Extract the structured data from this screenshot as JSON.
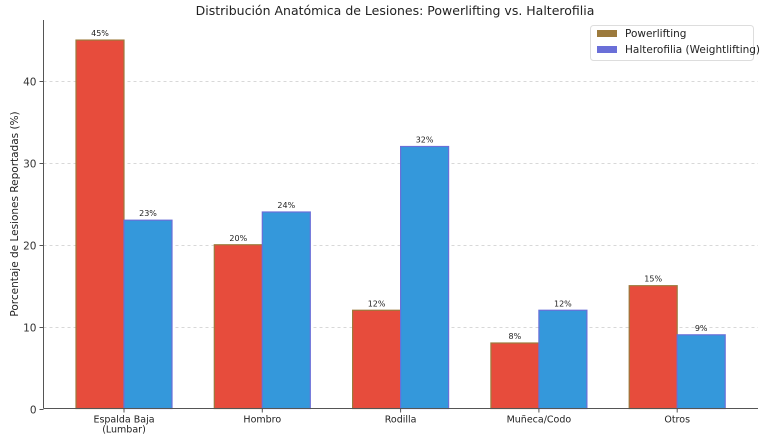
{
  "chart_data": {
    "type": "bar",
    "title": "Distribución Anatómica de Lesiones: Powerlifting vs. Halterofilia",
    "xlabel": "",
    "ylabel": "Porcentaje de Lesiones Reportadas (%)",
    "categories": [
      "Espalda Baja\n(Lumbar)",
      "Hombro",
      "Rodilla",
      "Muñeca/Codo",
      "Otros"
    ],
    "series": [
      {
        "name": "Powerlifting",
        "values": [
          45,
          20,
          12,
          8,
          15
        ],
        "color": "#e74c3c",
        "edge_color": "#9c7a3c",
        "legend_color": "#9c7a3c",
        "labels": [
          "45%",
          "20%",
          "12%",
          "8%",
          "15%"
        ]
      },
      {
        "name": "Halterofilia (Weightlifting)",
        "values": [
          23,
          24,
          32,
          12,
          9
        ],
        "color": "#3498db",
        "edge_color": "#6a6fd8",
        "legend_color": "#6a6fd8",
        "labels": [
          "23%",
          "24%",
          "32%",
          "12%",
          "9%"
        ]
      }
    ],
    "ylim": [
      0,
      47.5
    ],
    "yticks": [
      0,
      10,
      20,
      30,
      40
    ],
    "grid": "y-dashed",
    "legend_position": "top-right"
  }
}
